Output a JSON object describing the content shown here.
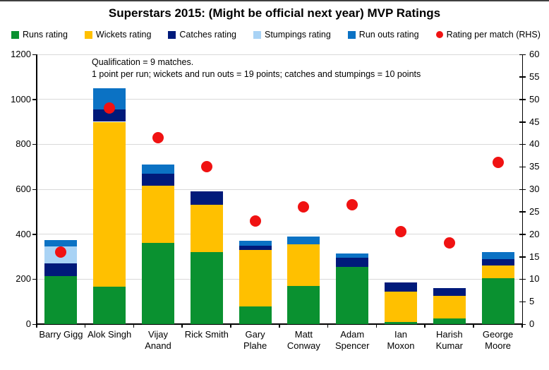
{
  "title": "Superstars 2015: (Might be official next year) MVP Ratings",
  "annotation": {
    "line1": "Qualification = 9 matches.",
    "line2": "1 point per run; wickets and run outs = 19 points; catches and stumpings = 10 points"
  },
  "colors": {
    "runs": "#0a9130",
    "wickets": "#ffc000",
    "catches": "#001a7a",
    "stumpings": "#a9d3f5",
    "run_outs": "#0b72c4",
    "rating_dot": "#f01212",
    "gridline": "#d9d9d9",
    "axis": "#000000"
  },
  "chart_data": {
    "type": "bar",
    "stacked": true,
    "secondary_axis": true,
    "title": "Superstars 2015: (Might be official next year) MVP Ratings",
    "legend_position": "top",
    "grid": "horizontal",
    "categories": [
      "Barry Gigg",
      "Alok Singh",
      "Vijay Anand",
      "Rick Smith",
      "Gary Plahe",
      "Matt Conway",
      "Adam Spencer",
      "Ian Moxon",
      "Harish Kumar",
      "George Moore"
    ],
    "category_label_lines": [
      [
        "Barry Gigg"
      ],
      [
        "Alok Singh"
      ],
      [
        "Vijay",
        "Anand"
      ],
      [
        "Rick Smith"
      ],
      [
        "Gary",
        "Plahe"
      ],
      [
        "Matt",
        "Conway"
      ],
      [
        "Adam",
        "Spencer"
      ],
      [
        "Ian",
        "Moxon"
      ],
      [
        "Harish",
        "Kumar"
      ],
      [
        "George",
        "Moore"
      ]
    ],
    "series": [
      {
        "name": "Runs rating",
        "color_key": "runs",
        "values": [
          215,
          165,
          360,
          320,
          80,
          170,
          255,
          10,
          25,
          205
        ]
      },
      {
        "name": "Wickets rating",
        "color_key": "wickets",
        "values": [
          0,
          735,
          255,
          210,
          250,
          185,
          0,
          135,
          100,
          55
        ]
      },
      {
        "name": "Catches rating",
        "color_key": "catches",
        "values": [
          55,
          55,
          55,
          60,
          20,
          0,
          40,
          40,
          35,
          30
        ]
      },
      {
        "name": "Stumpings rating",
        "color_key": "stumpings",
        "values": [
          75,
          0,
          0,
          0,
          0,
          0,
          0,
          0,
          0,
          0
        ]
      },
      {
        "name": "Run outs rating",
        "color_key": "run_outs",
        "values": [
          30,
          95,
          40,
          0,
          20,
          35,
          20,
          0,
          0,
          30
        ]
      }
    ],
    "dot_series": {
      "name": "Rating per match (RHS)",
      "color_key": "rating_dot",
      "values": [
        16,
        48,
        41.5,
        35,
        23,
        26,
        26.5,
        20.5,
        18,
        36
      ]
    },
    "left_axis": {
      "min": 0,
      "max": 1200,
      "ticks": [
        0,
        200,
        400,
        600,
        800,
        1000,
        1200
      ]
    },
    "right_axis": {
      "min": 0,
      "max": 60,
      "ticks": [
        0,
        5,
        10,
        15,
        20,
        25,
        30,
        35,
        40,
        45,
        50,
        55,
        60
      ]
    }
  }
}
